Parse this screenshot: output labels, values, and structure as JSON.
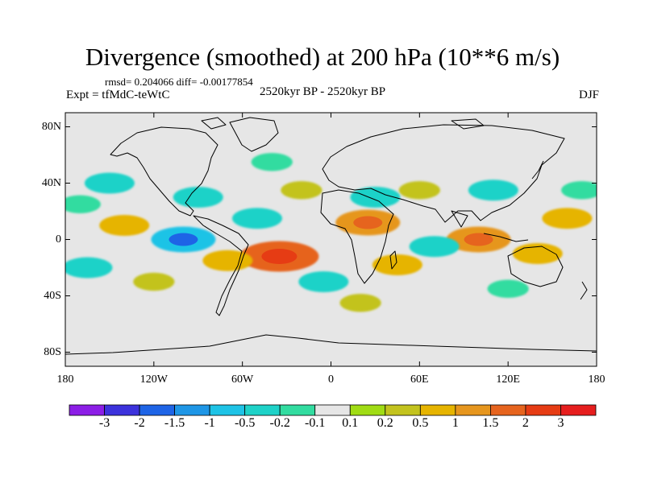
{
  "chart_data": {
    "type": "contour-map",
    "title": "Divergence (smoothed) at 200 hPa (10**6 m/s)",
    "stats_text": "rmsd= 0.204066  diff= -0.00177854",
    "experiment_text": "Expt = tfMdC-teWtC",
    "period_text": "2520kyr BP - 2520kyr BP",
    "season": "DJF",
    "x_axis": {
      "range": [
        -180,
        180
      ],
      "ticks": [
        {
          "value": -180,
          "label": "180"
        },
        {
          "value": -120,
          "label": "120W"
        },
        {
          "value": -60,
          "label": "60W"
        },
        {
          "value": 0,
          "label": "0"
        },
        {
          "value": 60,
          "label": "60E"
        },
        {
          "value": 120,
          "label": "120E"
        },
        {
          "value": 180,
          "label": "180"
        }
      ]
    },
    "y_axis": {
      "range": [
        -90,
        90
      ],
      "ticks": [
        {
          "value": 80,
          "label": "80N"
        },
        {
          "value": 40,
          "label": "40N"
        },
        {
          "value": 0,
          "label": "0"
        },
        {
          "value": -40,
          "label": "40S"
        },
        {
          "value": -80,
          "label": "80S"
        }
      ]
    },
    "colorbar": {
      "levels": [
        "-3",
        "-2",
        "-1.5",
        "-1",
        "-0.5",
        "-0.2",
        "-0.1",
        "0.1",
        "0.2",
        "0.5",
        "1",
        "1.5",
        "2",
        "3"
      ],
      "colors": [
        "#8c1ee6",
        "#3c32dc",
        "#1e64e6",
        "#1e96e6",
        "#1ec3e6",
        "#1ed2c8",
        "#32dca0",
        "#e6e6e6",
        "#a0dc14",
        "#c3c31e",
        "#e6b400",
        "#e6961e",
        "#e6641e",
        "#e63c14",
        "#e61e1e"
      ]
    },
    "field_description_blobs": [
      {
        "lon": 25,
        "lat": 12,
        "value": 1.0
      },
      {
        "lon": 45,
        "lat": -18,
        "value": 0.5
      },
      {
        "lon": -35,
        "lat": -12,
        "value": 1.5
      },
      {
        "lon": -70,
        "lat": -15,
        "value": 0.5
      },
      {
        "lon": 100,
        "lat": 0,
        "value": 1.0
      },
      {
        "lon": 140,
        "lat": -10,
        "value": 0.5
      },
      {
        "lon": 160,
        "lat": 15,
        "value": 0.5
      },
      {
        "lon": -140,
        "lat": 10,
        "value": 0.5
      },
      {
        "lon": -120,
        "lat": -30,
        "value": 0.2
      },
      {
        "lon": 60,
        "lat": 35,
        "value": 0.2
      },
      {
        "lon": -20,
        "lat": 35,
        "value": 0.2
      },
      {
        "lon": -150,
        "lat": 40,
        "value": -0.5
      },
      {
        "lon": -90,
        "lat": 30,
        "value": -0.5
      },
      {
        "lon": 30,
        "lat": 30,
        "value": -0.5
      },
      {
        "lon": 110,
        "lat": 35,
        "value": -0.5
      },
      {
        "lon": -5,
        "lat": -30,
        "value": -0.5
      },
      {
        "lon": -100,
        "lat": 0,
        "value": -1.0
      },
      {
        "lon": 70,
        "lat": -5,
        "value": -0.5
      },
      {
        "lon": -165,
        "lat": -20,
        "value": -0.5
      },
      {
        "lon": -170,
        "lat": 25,
        "value": -0.2
      },
      {
        "lon": 170,
        "lat": 35,
        "value": -0.2
      },
      {
        "lon": -50,
        "lat": 15,
        "value": -0.5
      },
      {
        "lon": 120,
        "lat": -35,
        "value": -0.2
      },
      {
        "lon": -40,
        "lat": 55,
        "value": -0.2
      },
      {
        "lon": 20,
        "lat": -45,
        "value": 0.2
      }
    ]
  }
}
